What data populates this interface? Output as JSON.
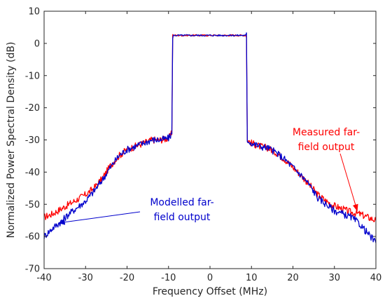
{
  "chart_data": {
    "type": "line",
    "title": "",
    "xlabel": "Frequency Offset (MHz)",
    "ylabel": "Normalized Power Spectral Density (dB)",
    "xlim": [
      -40,
      40
    ],
    "ylim": [
      -70,
      10
    ],
    "xticks": [
      -40,
      -30,
      -20,
      -10,
      0,
      10,
      20,
      30,
      40
    ],
    "yticks": [
      -70,
      -60,
      -50,
      -40,
      -30,
      -20,
      -10,
      0,
      10
    ],
    "grid": false,
    "series": [
      {
        "name": "Measured far-field output",
        "color": "#ff0000",
        "x": [
          -40,
          -38,
          -36,
          -34,
          -32,
          -30,
          -28,
          -26,
          -24,
          -22,
          -20,
          -18,
          -16,
          -14,
          -12,
          -10,
          -9.2,
          -9,
          -8,
          -6,
          -4,
          -2,
          0,
          2,
          4,
          6,
          8,
          8.8,
          9,
          10,
          12,
          14,
          16,
          18,
          20,
          22,
          24,
          26,
          28,
          30,
          32,
          34,
          36,
          38,
          40
        ],
        "y": [
          -54,
          -53,
          -51.5,
          -50,
          -48.5,
          -47,
          -45,
          -42,
          -38,
          -35,
          -33,
          -32,
          -31,
          -30,
          -30,
          -29.5,
          -28,
          2.5,
          2.5,
          2.5,
          2.5,
          2.5,
          2.5,
          2.5,
          2.5,
          2.5,
          2.5,
          2.5,
          -30,
          -31,
          -32,
          -32.5,
          -34,
          -36,
          -38.5,
          -41,
          -44,
          -47,
          -49,
          -50.5,
          -51.5,
          -52.5,
          -53,
          -54,
          -55
        ]
      },
      {
        "name": "Modelled far-field output",
        "color": "#0000cc",
        "x": [
          -40,
          -38,
          -36,
          -34,
          -32,
          -30,
          -28,
          -26,
          -24,
          -22,
          -20,
          -18,
          -16,
          -14,
          -12,
          -10,
          -9.2,
          -9,
          -8,
          -6,
          -4,
          -2,
          0,
          2,
          4,
          6,
          8,
          8.8,
          9,
          10,
          12,
          14,
          16,
          18,
          20,
          22,
          24,
          26,
          28,
          30,
          32,
          34,
          36,
          38,
          40
        ],
        "y": [
          -60,
          -57.5,
          -55.5,
          -53,
          -51,
          -49,
          -46,
          -42.5,
          -38.5,
          -35,
          -33,
          -32,
          -31,
          -30,
          -30,
          -29.5,
          -28,
          2.5,
          2.5,
          2.5,
          2.5,
          2.5,
          2.5,
          2.5,
          2.5,
          2.5,
          2.5,
          2.5,
          -30,
          -31,
          -32,
          -32.5,
          -34,
          -36,
          -38.5,
          -41,
          -44,
          -48,
          -50,
          -52,
          -53,
          -54,
          -56,
          -59,
          -62
        ]
      }
    ],
    "annotations": [
      {
        "line1": "Measured far-",
        "line2": "field output",
        "color": "#ff0000",
        "arrow_to": [
          35.5,
          -52
        ]
      },
      {
        "line1": "Modelled far-",
        "line2": "field output",
        "color": "#0000cc",
        "arrow_to": [
          -36.5,
          -55.8
        ]
      }
    ]
  }
}
